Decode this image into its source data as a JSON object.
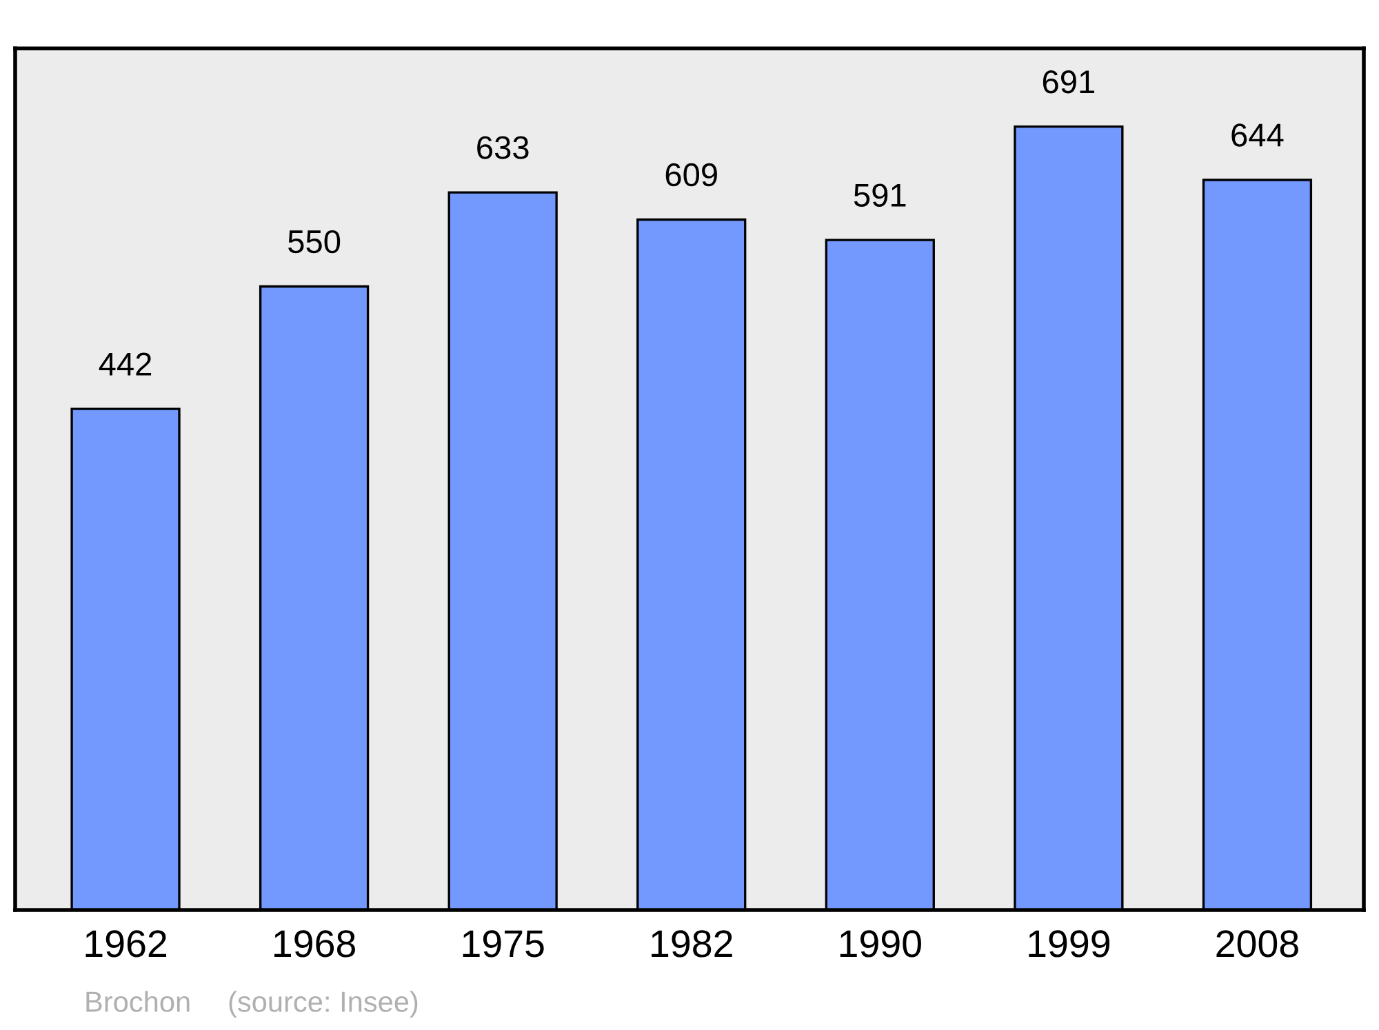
{
  "chart_data": {
    "type": "bar",
    "categories": [
      "1962",
      "1968",
      "1975",
      "1982",
      "1990",
      "1999",
      "2008"
    ],
    "values": [
      442,
      550,
      633,
      609,
      591,
      691,
      644
    ],
    "color": "#7399ff",
    "ylim": [
      0,
      760
    ],
    "tick_labels": "x",
    "data_labels": true,
    "grid": false,
    "legend": false,
    "annotations": [
      "Brochon",
      "(source: Insee)"
    ]
  }
}
